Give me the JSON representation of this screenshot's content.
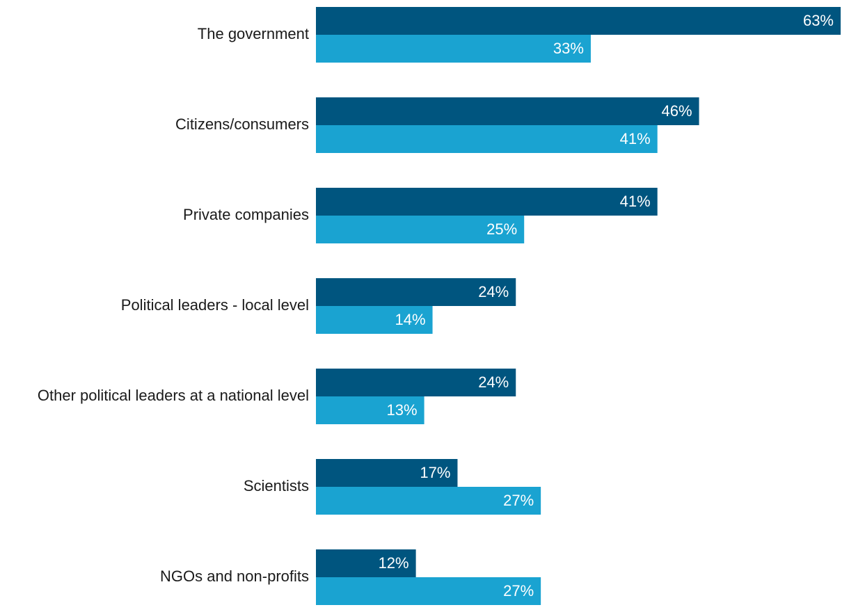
{
  "chart_data": {
    "type": "bar",
    "orientation": "horizontal",
    "categories": [
      "The government",
      "Citizens/consumers",
      "Private companies",
      "Political leaders - local level",
      "Other political leaders at a national level",
      "Scientists",
      "NGOs and non-profits"
    ],
    "series": [
      {
        "name": "Series 1",
        "color": "#00557f",
        "values": [
          63,
          46,
          41,
          24,
          24,
          17,
          12
        ]
      },
      {
        "name": "Series 2",
        "color": "#1aa3d1",
        "values": [
          33,
          41,
          25,
          14,
          13,
          27,
          27
        ]
      }
    ],
    "value_suffix": "%",
    "xlim": [
      0,
      63
    ],
    "title": "",
    "xlabel": "",
    "ylabel": "",
    "grid": false,
    "legend": "none"
  }
}
